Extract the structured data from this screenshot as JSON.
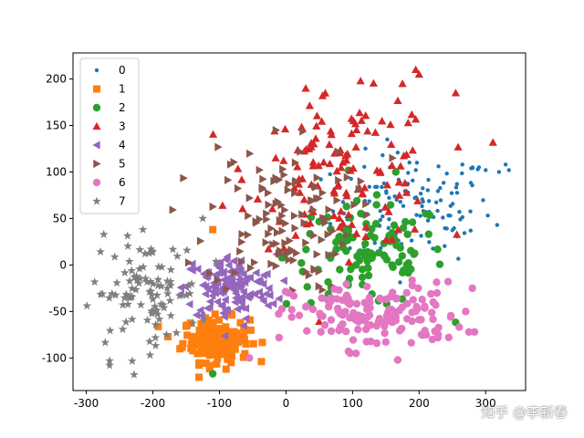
{
  "watermark": "知乎 @李新春",
  "chart_data": {
    "type": "scatter",
    "title": "",
    "xlabel": "",
    "ylabel": "",
    "xlim": [
      -320,
      360
    ],
    "ylim": [
      -135,
      228
    ],
    "xticks": [
      -300,
      -200,
      -100,
      0,
      100,
      200,
      300
    ],
    "yticks": [
      -100,
      -50,
      0,
      50,
      100,
      150,
      200
    ],
    "grid": false,
    "legend": "upper-left",
    "series": [
      {
        "name": "0",
        "marker": "point",
        "color": "#1f77b4",
        "center": [
          190,
          60
        ],
        "spread": [
          60,
          30
        ],
        "count": 130,
        "extra": [
          [
            330,
            108
          ],
          [
            320,
            100
          ],
          [
            300,
            102
          ],
          [
            290,
            105
          ],
          [
            265,
            108
          ],
          [
            335,
            102
          ]
        ]
      },
      {
        "name": "1",
        "marker": "square",
        "color": "#ff7f0e",
        "center": [
          -105,
          -80
        ],
        "spread": [
          25,
          12
        ],
        "count": 170,
        "extra": [
          [
            -110,
            38
          ],
          [
            -115,
            -108
          ],
          [
            -90,
            -112
          ]
        ]
      },
      {
        "name": "2",
        "marker": "circle",
        "color": "#2ca02c",
        "center": [
          120,
          10
        ],
        "spread": [
          60,
          28
        ],
        "count": 110,
        "extra": [
          [
            -110,
            -117
          ],
          [
            210,
            55
          ],
          [
            165,
            100
          ]
        ]
      },
      {
        "name": "3",
        "marker": "triangle-up",
        "color": "#d62728",
        "center": [
          90,
          100
        ],
        "spread": [
          70,
          40
        ],
        "count": 130,
        "extra": [
          [
            195,
            210
          ],
          [
            200,
            205
          ],
          [
            255,
            185
          ],
          [
            175,
            195
          ],
          [
            55,
            182
          ]
        ]
      },
      {
        "name": "4",
        "marker": "triangle-left",
        "color": "#9467bd",
        "center": [
          -85,
          -25
        ],
        "spread": [
          35,
          18
        ],
        "count": 140,
        "extra": []
      },
      {
        "name": "5",
        "marker": "triangle-right",
        "color": "#8c564b",
        "center": [
          -10,
          50
        ],
        "spread": [
          55,
          40
        ],
        "count": 120,
        "extra": [
          [
            -15,
            145
          ],
          [
            160,
            115
          ]
        ]
      },
      {
        "name": "6",
        "marker": "circle",
        "color": "#e377c2",
        "center": [
          135,
          -55
        ],
        "spread": [
          65,
          18
        ],
        "count": 150,
        "extra": [
          [
            280,
            -25
          ],
          [
            270,
            -50
          ],
          [
            -55,
            -100
          ]
        ]
      },
      {
        "name": "7",
        "marker": "star",
        "color": "#7f7f7f",
        "center": [
          -210,
          -30
        ],
        "spread": [
          40,
          28
        ],
        "count": 100,
        "extra": [
          [
            -265,
            -103
          ],
          [
            -265,
            -108
          ],
          [
            -215,
            38
          ],
          [
            -125,
            50
          ]
        ]
      }
    ]
  }
}
